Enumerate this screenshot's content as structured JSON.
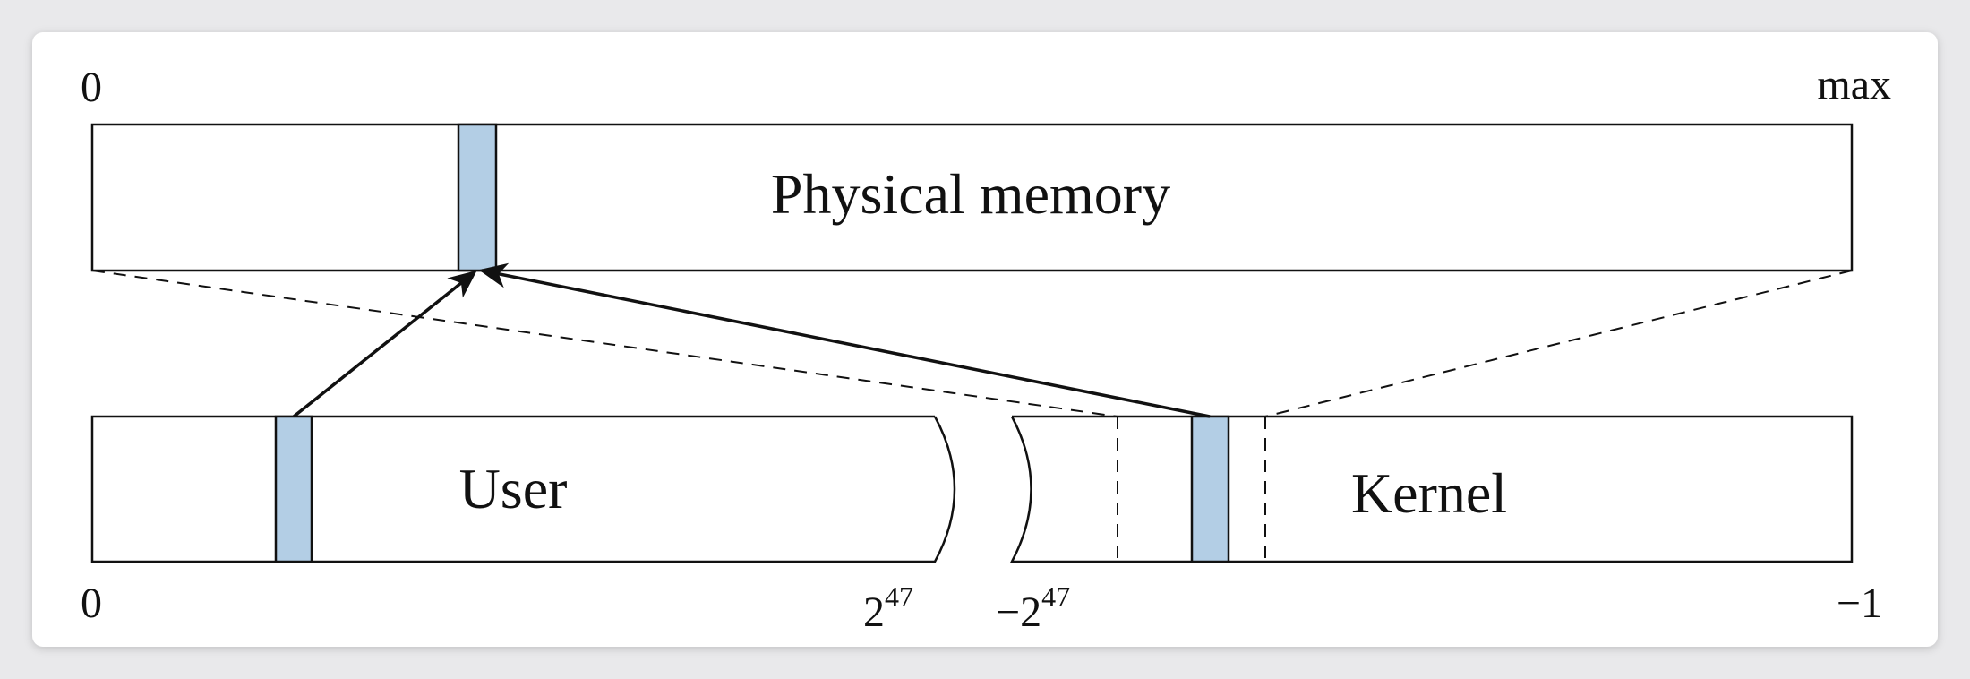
{
  "physical": {
    "label": "Physical memory",
    "start_label": "0",
    "end_label": "max"
  },
  "virtual": {
    "user_label": "User",
    "kernel_label": "Kernel",
    "start_label": "0",
    "user_end_base": "2",
    "user_end_exp": "47",
    "kernel_start_sign": "−",
    "kernel_start_base": "2",
    "kernel_start_exp": "47",
    "end_label": "−1"
  },
  "colors": {
    "page_highlight": "#b3cee5",
    "stroke": "#111111"
  }
}
